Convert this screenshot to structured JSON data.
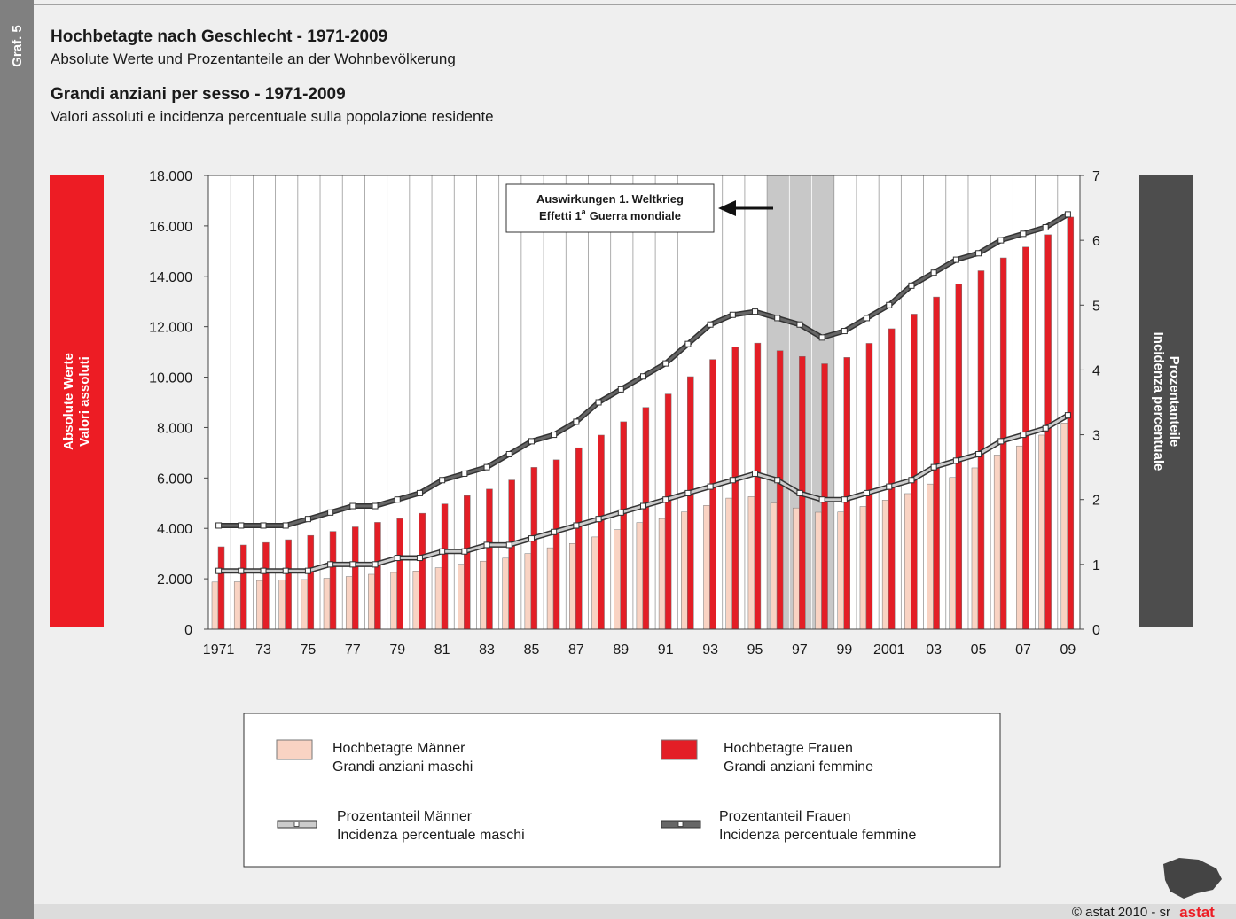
{
  "sidebar": "Graf. 5",
  "chart_data": {
    "type": "bar",
    "title": "Hochbetagte nach Geschlecht - 1971-2009",
    "subtitle": "Absolute Werte und Prozentanteile an der Wohnbevölkerung",
    "title_it": "Grandi anziani per sesso - 1971-2009",
    "subtitle_it": "Valori assoluti e incidenza percentuale sulla popolazione residente",
    "ylabel": [
      "Absolute Werte",
      "Valori assoluti"
    ],
    "y2label": [
      "Prozentanteile",
      "Incidenza percentuale"
    ],
    "annotation": [
      "Auswirkungen 1. Weltkrieg",
      "Effetti 1",
      "a",
      "Guerra mondiale"
    ],
    "categories": [
      "1971",
      null,
      "73",
      null,
      "75",
      null,
      "77",
      null,
      "79",
      null,
      "81",
      null,
      "83",
      null,
      "85",
      null,
      "87",
      null,
      "89",
      null,
      "91",
      null,
      "93",
      null,
      "95",
      null,
      "97",
      null,
      "99",
      null,
      "2001",
      null,
      "03",
      null,
      "05",
      null,
      "07",
      null,
      "09"
    ],
    "series": [
      {
        "name": "Hochbetagte Männer",
        "name_it": "Grandi anziani maschi",
        "color": "#f9d3c3",
        "values": [
          1870,
          1880,
          1930,
          1960,
          1970,
          2020,
          2090,
          2180,
          2250,
          2310,
          2440,
          2580,
          2700,
          2820,
          3000,
          3230,
          3400,
          3660,
          3950,
          4230,
          4390,
          4650,
          4910,
          5200,
          5260,
          5010,
          4810,
          4640,
          4650,
          4870,
          5120,
          5380,
          5760,
          6020,
          6400,
          6910,
          7270,
          7700,
          8180
        ]
      },
      {
        "name": "Hochbetagte Frauen",
        "name_it": "Grandi anziani femmine",
        "color": "#e31e26",
        "values": [
          3270,
          3340,
          3440,
          3550,
          3720,
          3880,
          4060,
          4240,
          4390,
          4600,
          4970,
          5300,
          5560,
          5920,
          6420,
          6720,
          7200,
          7700,
          8230,
          8800,
          9330,
          10020,
          10700,
          11200,
          11350,
          11050,
          10820,
          10530,
          10780,
          11340,
          11920,
          12500,
          13180,
          13690,
          14220,
          14730,
          15160,
          15650,
          16350
        ]
      },
      {
        "name": "Prozentanteil Männer",
        "name_it": "Incidenza percentuale maschi",
        "color": "#cccccc",
        "axis": "y2",
        "values": [
          0.9,
          0.9,
          0.9,
          0.9,
          0.9,
          1.0,
          1.0,
          1.0,
          1.1,
          1.1,
          1.2,
          1.2,
          1.3,
          1.3,
          1.4,
          1.5,
          1.6,
          1.7,
          1.8,
          1.9,
          2.0,
          2.1,
          2.2,
          2.3,
          2.4,
          2.3,
          2.1,
          2.0,
          2.0,
          2.1,
          2.2,
          2.3,
          2.5,
          2.6,
          2.7,
          2.9,
          3.0,
          3.1,
          3.3
        ]
      },
      {
        "name": "Prozentanteil Frauen",
        "name_it": "Incidenza percentuale femmine",
        "color": "#666666",
        "axis": "y2",
        "values": [
          1.6,
          1.6,
          1.6,
          1.6,
          1.7,
          1.8,
          1.9,
          1.9,
          2.0,
          2.1,
          2.3,
          2.4,
          2.5,
          2.7,
          2.9,
          3.0,
          3.2,
          3.5,
          3.7,
          3.9,
          4.1,
          4.4,
          4.7,
          4.85,
          4.9,
          4.8,
          4.7,
          4.5,
          4.6,
          4.8,
          5.0,
          5.3,
          5.5,
          5.7,
          5.8,
          6.0,
          6.1,
          6.2,
          6.4
        ]
      }
    ],
    "ylim": [
      0,
      18000
    ],
    "yticks": [
      0,
      {
        "value": 2000,
        "label": "2.000"
      },
      {
        "value": 4000,
        "label": "4.000"
      },
      {
        "value": 6000,
        "label": "6.000"
      },
      {
        "value": 8000,
        "label": "8.000"
      },
      {
        "value": 10000,
        "label": "10.000"
      },
      {
        "value": 12000,
        "label": "12.000"
      },
      {
        "value": 14000,
        "label": "14.000"
      },
      {
        "value": 16000,
        "label": "16.000"
      },
      {
        "value": 18000,
        "label": "18.000"
      }
    ],
    "y2lim": [
      0,
      7
    ],
    "y2ticks": [
      0,
      1,
      2,
      3,
      4,
      5,
      6,
      7
    ],
    "grid": true
  },
  "footer": {
    "copyright": "© astat 2010 - sr",
    "logo": "astat"
  }
}
